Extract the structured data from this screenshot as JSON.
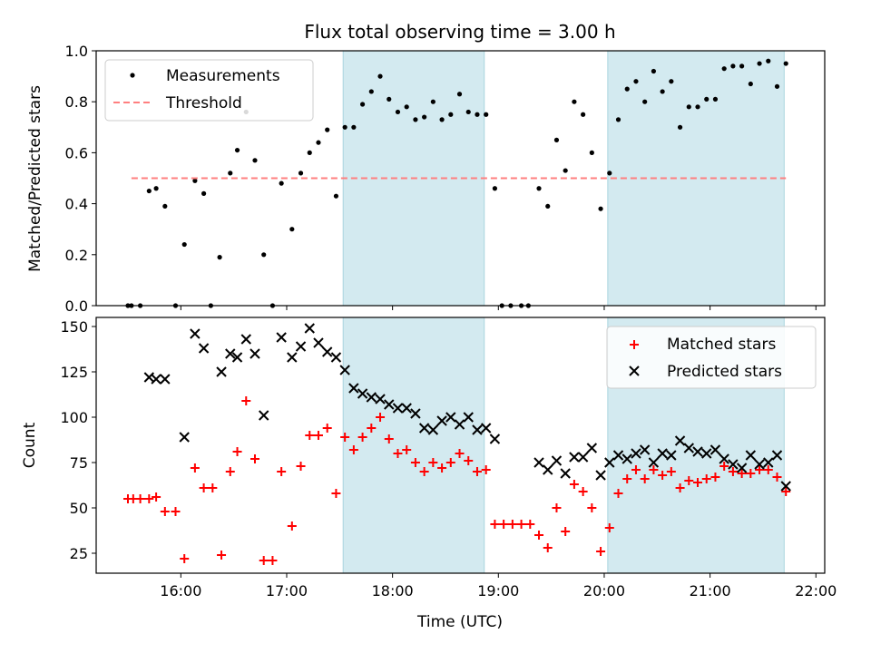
{
  "chart_data": [
    {
      "type": "scatter",
      "title": "Flux total observing time = 3.00 h",
      "xlabel": "",
      "ylabel": "Matched/Predicted stars",
      "xlim": [
        "15:12",
        "22:05"
      ],
      "ylim": [
        0,
        1.0
      ],
      "yticks": [
        "0.0",
        "0.2",
        "0.4",
        "0.6",
        "0.8",
        "1.0"
      ],
      "legend_position": "top-left",
      "shaded_intervals": [
        [
          "17:32",
          "18:52"
        ],
        [
          "20:02",
          "21:42"
        ]
      ],
      "shade_color": "#d3eaf0",
      "series": [
        {
          "name": "Measurements",
          "style": "dot",
          "color": "#000000",
          "points": [
            [
              "15:30",
              0.0
            ],
            [
              "15:32",
              0.0
            ],
            [
              "15:37",
              0.0
            ],
            [
              "15:42",
              0.45
            ],
            [
              "15:46",
              0.46
            ],
            [
              "15:51",
              0.39
            ],
            [
              "15:57",
              0.0
            ],
            [
              "16:02",
              0.24
            ],
            [
              "16:08",
              0.49
            ],
            [
              "16:13",
              0.44
            ],
            [
              "16:17",
              0.0
            ],
            [
              "16:22",
              0.19
            ],
            [
              "16:28",
              0.52
            ],
            [
              "16:32",
              0.61
            ],
            [
              "16:37",
              0.76
            ],
            [
              "16:42",
              0.57
            ],
            [
              "16:47",
              0.2
            ],
            [
              "16:52",
              0.0
            ],
            [
              "16:57",
              0.48
            ],
            [
              "17:03",
              0.3
            ],
            [
              "17:08",
              0.52
            ],
            [
              "17:13",
              0.6
            ],
            [
              "17:18",
              0.64
            ],
            [
              "17:23",
              0.69
            ],
            [
              "17:28",
              0.43
            ],
            [
              "17:33",
              0.7
            ],
            [
              "17:38",
              0.7
            ],
            [
              "17:43",
              0.79
            ],
            [
              "17:48",
              0.84
            ],
            [
              "17:53",
              0.9
            ],
            [
              "17:58",
              0.81
            ],
            [
              "18:03",
              0.76
            ],
            [
              "18:08",
              0.78
            ],
            [
              "18:13",
              0.73
            ],
            [
              "18:18",
              0.74
            ],
            [
              "18:23",
              0.8
            ],
            [
              "18:28",
              0.73
            ],
            [
              "18:33",
              0.75
            ],
            [
              "18:38",
              0.83
            ],
            [
              "18:43",
              0.76
            ],
            [
              "18:48",
              0.75
            ],
            [
              "18:53",
              0.75
            ],
            [
              "18:58",
              0.46
            ],
            [
              "19:02",
              0.0
            ],
            [
              "19:07",
              0.0
            ],
            [
              "19:13",
              0.0
            ],
            [
              "19:17",
              0.0
            ],
            [
              "19:23",
              0.46
            ],
            [
              "19:28",
              0.39
            ],
            [
              "19:33",
              0.65
            ],
            [
              "19:38",
              0.53
            ],
            [
              "19:43",
              0.8
            ],
            [
              "19:48",
              0.75
            ],
            [
              "19:53",
              0.6
            ],
            [
              "19:58",
              0.38
            ],
            [
              "20:03",
              0.52
            ],
            [
              "20:08",
              0.73
            ],
            [
              "20:13",
              0.85
            ],
            [
              "20:18",
              0.88
            ],
            [
              "20:23",
              0.8
            ],
            [
              "20:28",
              0.92
            ],
            [
              "20:33",
              0.84
            ],
            [
              "20:38",
              0.88
            ],
            [
              "20:43",
              0.7
            ],
            [
              "20:48",
              0.78
            ],
            [
              "20:53",
              0.78
            ],
            [
              "20:58",
              0.81
            ],
            [
              "21:03",
              0.81
            ],
            [
              "21:08",
              0.93
            ],
            [
              "21:13",
              0.94
            ],
            [
              "21:18",
              0.94
            ],
            [
              "21:23",
              0.87
            ],
            [
              "21:28",
              0.95
            ],
            [
              "21:33",
              0.96
            ],
            [
              "21:38",
              0.86
            ],
            [
              "21:43",
              0.95
            ]
          ]
        },
        {
          "name": "Threshold",
          "style": "dashed-line",
          "color": "#ff7f7f",
          "points": [
            [
              "15:32",
              0.5
            ],
            [
              "21:43",
              0.5
            ]
          ]
        }
      ]
    },
    {
      "type": "scatter",
      "title": "",
      "xlabel": "Time (UTC)",
      "ylabel": "Count",
      "xlim": [
        "15:12",
        "22:05"
      ],
      "ylim": [
        14,
        155
      ],
      "yticks": [
        "25",
        "50",
        "75",
        "100",
        "125",
        "150"
      ],
      "xticks": [
        "16:00",
        "17:00",
        "18:00",
        "19:00",
        "20:00",
        "21:00",
        "22:00"
      ],
      "legend_position": "top-right",
      "shaded_intervals": [
        [
          "17:32",
          "18:52"
        ],
        [
          "20:02",
          "21:42"
        ]
      ],
      "shade_color": "#d3eaf0",
      "series": [
        {
          "name": "Matched stars",
          "style": "plus",
          "color": "#ff0000",
          "points": [
            [
              "15:30",
              55
            ],
            [
              "15:33",
              55
            ],
            [
              "15:37",
              55
            ],
            [
              "15:42",
              55
            ],
            [
              "15:46",
              56
            ],
            [
              "15:51",
              48
            ],
            [
              "15:57",
              48
            ],
            [
              "16:02",
              22
            ],
            [
              "16:08",
              72
            ],
            [
              "16:13",
              61
            ],
            [
              "16:18",
              61
            ],
            [
              "16:23",
              24
            ],
            [
              "16:28",
              70
            ],
            [
              "16:32",
              81
            ],
            [
              "16:37",
              109
            ],
            [
              "16:42",
              77
            ],
            [
              "16:47",
              21
            ],
            [
              "16:52",
              21
            ],
            [
              "16:57",
              70
            ],
            [
              "17:03",
              40
            ],
            [
              "17:08",
              73
            ],
            [
              "17:13",
              90
            ],
            [
              "17:18",
              90
            ],
            [
              "17:23",
              94
            ],
            [
              "17:28",
              58
            ],
            [
              "17:33",
              89
            ],
            [
              "17:38",
              82
            ],
            [
              "17:43",
              89
            ],
            [
              "17:48",
              94
            ],
            [
              "17:53",
              100
            ],
            [
              "17:58",
              88
            ],
            [
              "18:03",
              80
            ],
            [
              "18:08",
              82
            ],
            [
              "18:13",
              75
            ],
            [
              "18:18",
              70
            ],
            [
              "18:23",
              75
            ],
            [
              "18:28",
              72
            ],
            [
              "18:33",
              75
            ],
            [
              "18:38",
              80
            ],
            [
              "18:43",
              76
            ],
            [
              "18:48",
              70
            ],
            [
              "18:53",
              71
            ],
            [
              "18:58",
              41
            ],
            [
              "19:03",
              41
            ],
            [
              "19:08",
              41
            ],
            [
              "19:13",
              41
            ],
            [
              "19:18",
              41
            ],
            [
              "19:23",
              35
            ],
            [
              "19:28",
              28
            ],
            [
              "19:33",
              50
            ],
            [
              "19:38",
              37
            ],
            [
              "19:43",
              63
            ],
            [
              "19:48",
              59
            ],
            [
              "19:53",
              50
            ],
            [
              "19:58",
              26
            ],
            [
              "20:03",
              39
            ],
            [
              "20:08",
              58
            ],
            [
              "20:13",
              66
            ],
            [
              "20:18",
              71
            ],
            [
              "20:23",
              66
            ],
            [
              "20:28",
              71
            ],
            [
              "20:33",
              68
            ],
            [
              "20:38",
              70
            ],
            [
              "20:43",
              61
            ],
            [
              "20:48",
              65
            ],
            [
              "20:53",
              64
            ],
            [
              "20:58",
              66
            ],
            [
              "21:03",
              67
            ],
            [
              "21:08",
              73
            ],
            [
              "21:13",
              70
            ],
            [
              "21:18",
              69
            ],
            [
              "21:23",
              69
            ],
            [
              "21:28",
              71
            ],
            [
              "21:33",
              71
            ],
            [
              "21:38",
              67
            ],
            [
              "21:43",
              59
            ]
          ]
        },
        {
          "name": "Predicted stars",
          "style": "x",
          "color": "#000000",
          "points": [
            [
              "15:42",
              122
            ],
            [
              "15:46",
              121
            ],
            [
              "15:51",
              121
            ],
            [
              "16:02",
              89
            ],
            [
              "16:08",
              146
            ],
            [
              "16:13",
              138
            ],
            [
              "16:23",
              125
            ],
            [
              "16:28",
              135
            ],
            [
              "16:32",
              133
            ],
            [
              "16:37",
              143
            ],
            [
              "16:42",
              135
            ],
            [
              "16:47",
              101
            ],
            [
              "16:57",
              144
            ],
            [
              "17:03",
              133
            ],
            [
              "17:08",
              139
            ],
            [
              "17:13",
              149
            ],
            [
              "17:18",
              141
            ],
            [
              "17:23",
              136
            ],
            [
              "17:28",
              133
            ],
            [
              "17:33",
              126
            ],
            [
              "17:38",
              116
            ],
            [
              "17:43",
              113
            ],
            [
              "17:48",
              111
            ],
            [
              "17:53",
              110
            ],
            [
              "17:58",
              107
            ],
            [
              "18:03",
              105
            ],
            [
              "18:08",
              105
            ],
            [
              "18:13",
              102
            ],
            [
              "18:18",
              94
            ],
            [
              "18:23",
              93
            ],
            [
              "18:28",
              98
            ],
            [
              "18:33",
              100
            ],
            [
              "18:38",
              96
            ],
            [
              "18:43",
              100
            ],
            [
              "18:48",
              93
            ],
            [
              "18:53",
              94
            ],
            [
              "18:58",
              88
            ],
            [
              "19:23",
              75
            ],
            [
              "19:28",
              71
            ],
            [
              "19:33",
              76
            ],
            [
              "19:38",
              69
            ],
            [
              "19:43",
              78
            ],
            [
              "19:48",
              78
            ],
            [
              "19:53",
              83
            ],
            [
              "19:58",
              68
            ],
            [
              "20:03",
              75
            ],
            [
              "20:08",
              79
            ],
            [
              "20:13",
              77
            ],
            [
              "20:18",
              80
            ],
            [
              "20:23",
              82
            ],
            [
              "20:28",
              75
            ],
            [
              "20:33",
              80
            ],
            [
              "20:38",
              79
            ],
            [
              "20:43",
              87
            ],
            [
              "20:48",
              83
            ],
            [
              "20:53",
              81
            ],
            [
              "20:58",
              80
            ],
            [
              "21:03",
              82
            ],
            [
              "21:08",
              77
            ],
            [
              "21:13",
              74
            ],
            [
              "21:18",
              72
            ],
            [
              "21:23",
              79
            ],
            [
              "21:28",
              74
            ],
            [
              "21:33",
              75
            ],
            [
              "21:38",
              79
            ],
            [
              "21:43",
              62
            ]
          ]
        }
      ]
    }
  ]
}
